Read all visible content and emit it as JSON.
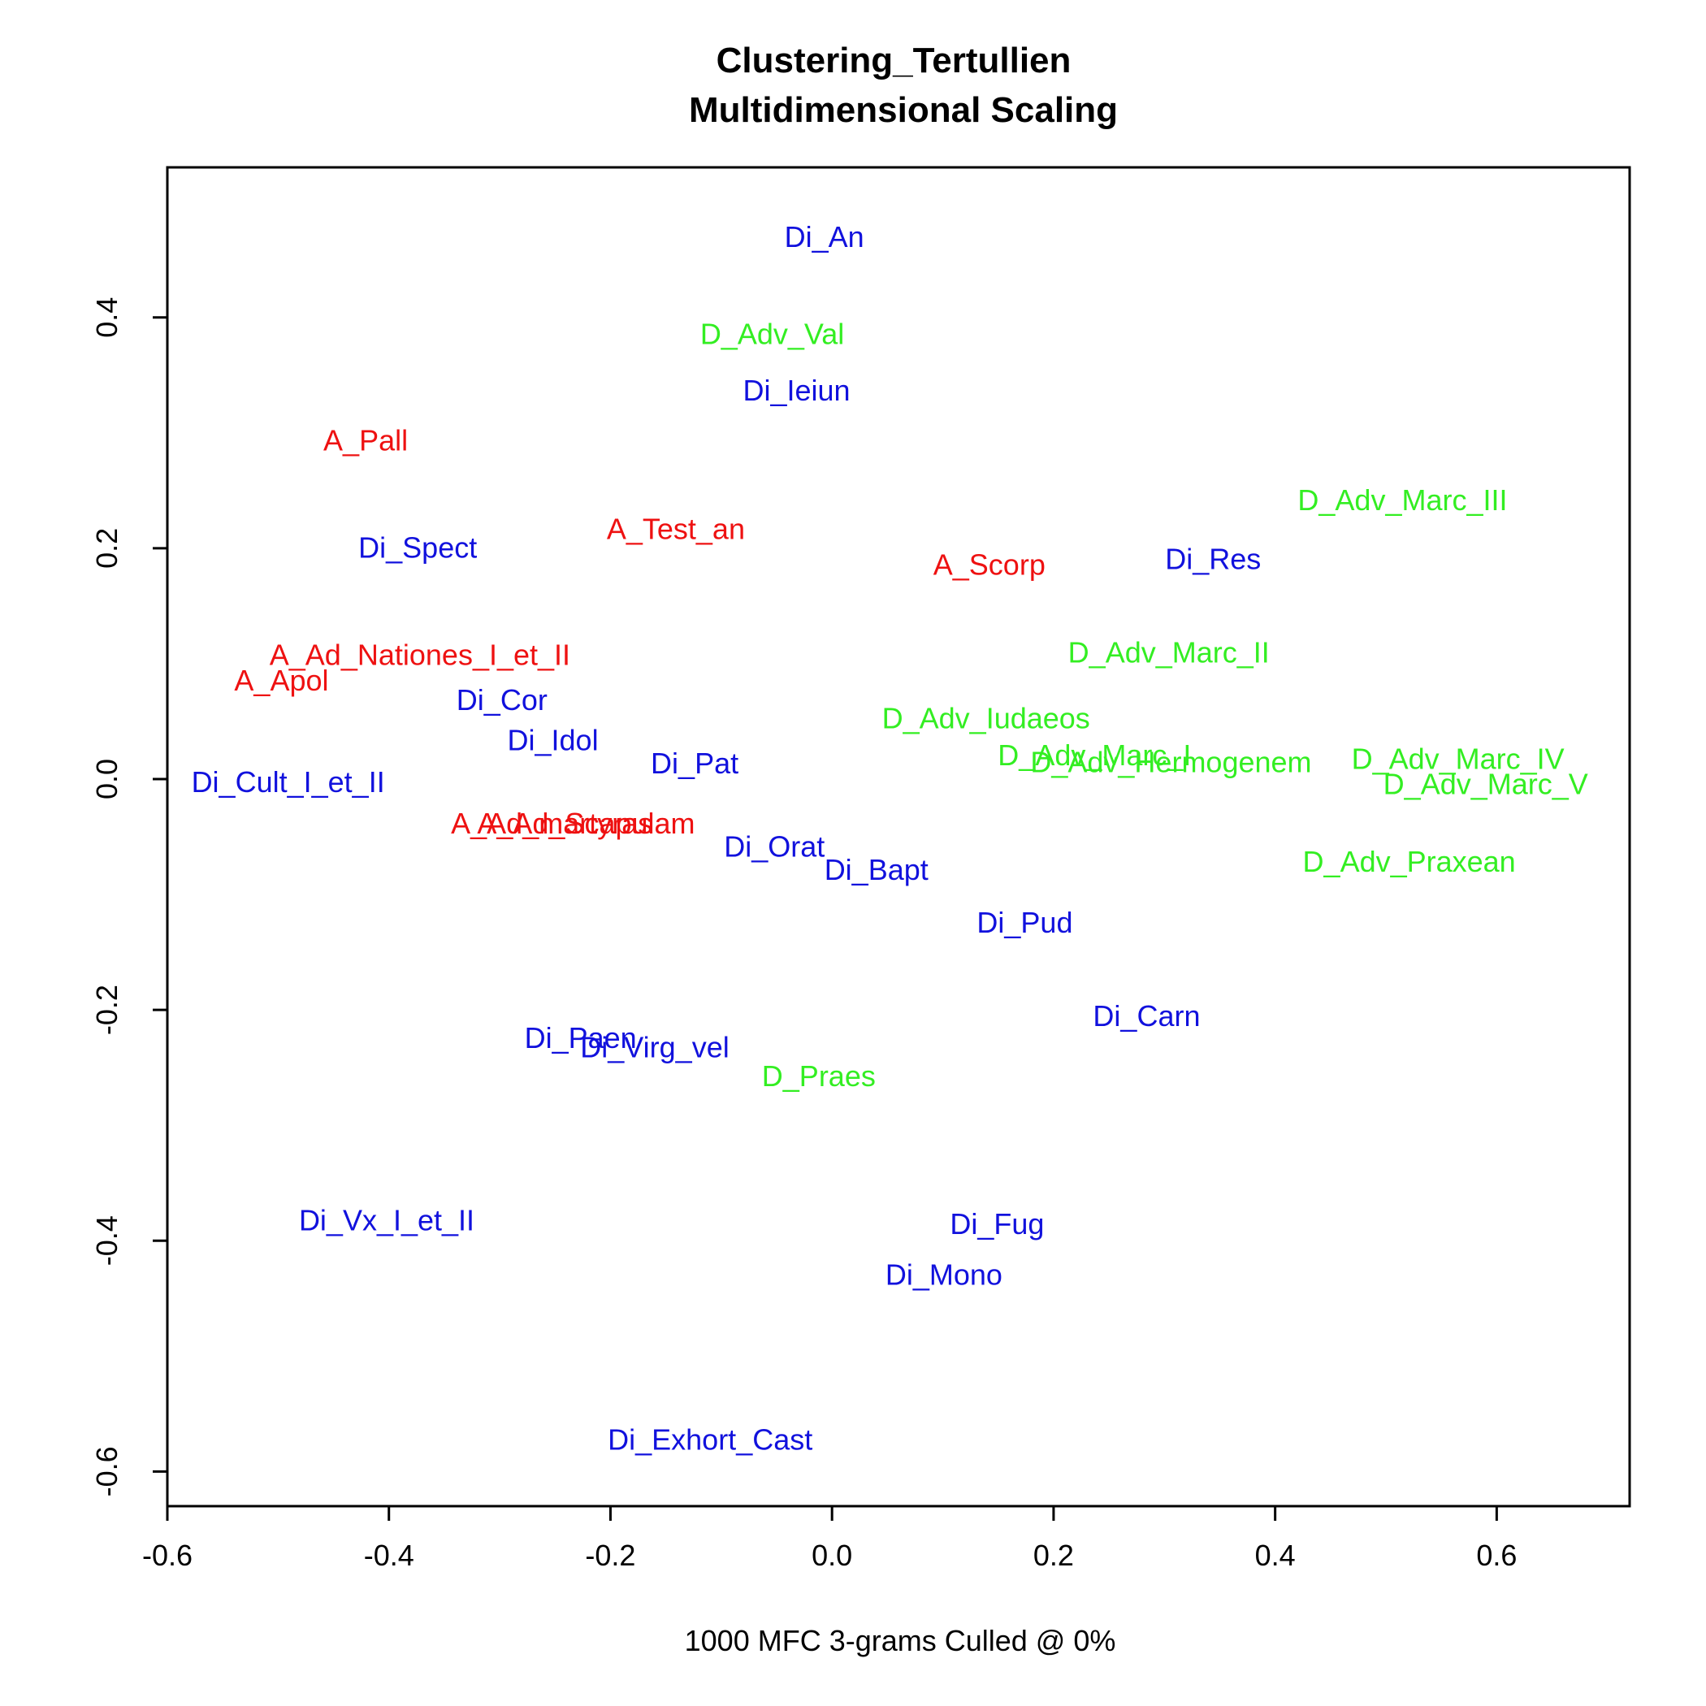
{
  "chart_data": {
    "type": "scatter",
    "title": "Clustering_Tertullien",
    "subtitle": "Multidimensional Scaling",
    "xlabel": "1000 MFC 3-grams Culled @ 0%",
    "ylabel": "",
    "xlim": [
      -0.6,
      0.72
    ],
    "ylim": [
      -0.63,
      0.53
    ],
    "x_ticks": [
      "-0.6",
      "-0.4",
      "-0.2",
      "0.0",
      "0.2",
      "0.4",
      "0.6"
    ],
    "y_ticks": [
      "-0.6",
      "-0.4",
      "-0.2",
      "0.0",
      "0.2",
      "0.4"
    ],
    "grid": false,
    "colors": {
      "A": "#ee1111",
      "Di": "#1111dd",
      "D": "#33ee22"
    },
    "points": [
      {
        "label": "Di_An",
        "group": "Di",
        "x": -0.007,
        "y": 0.47
      },
      {
        "label": "D_Adv_Val",
        "group": "D",
        "x": -0.054,
        "y": 0.386
      },
      {
        "label": "Di_Ieiun",
        "group": "Di",
        "x": -0.032,
        "y": 0.337
      },
      {
        "label": "A_Pall",
        "group": "A",
        "x": -0.421,
        "y": 0.294
      },
      {
        "label": "A_Test_an",
        "group": "A",
        "x": -0.141,
        "y": 0.217
      },
      {
        "label": "Di_Spect",
        "group": "Di",
        "x": -0.374,
        "y": 0.201
      },
      {
        "label": "A_Scorp",
        "group": "A",
        "x": 0.142,
        "y": 0.186
      },
      {
        "label": "Di_Res",
        "group": "Di",
        "x": 0.344,
        "y": 0.191
      },
      {
        "label": "D_Adv_Marc_III",
        "group": "D",
        "x": 0.515,
        "y": 0.242
      },
      {
        "label": "A_Ad_Nationes_I_et_II",
        "group": "A",
        "x": -0.372,
        "y": 0.108
      },
      {
        "label": "A_Apol",
        "group": "A",
        "x": -0.497,
        "y": 0.086
      },
      {
        "label": "D_Adv_Marc_II",
        "group": "D",
        "x": 0.304,
        "y": 0.11
      },
      {
        "label": "Di_Cor",
        "group": "Di",
        "x": -0.298,
        "y": 0.069
      },
      {
        "label": "D_Adv_Iudaeos",
        "group": "D",
        "x": 0.139,
        "y": 0.053
      },
      {
        "label": "Di_Idol",
        "group": "Di",
        "x": -0.252,
        "y": 0.034
      },
      {
        "label": "Di_Pat",
        "group": "Di",
        "x": -0.124,
        "y": 0.014
      },
      {
        "label": "D_Adv_Marc_I",
        "group": "D",
        "x": 0.237,
        "y": 0.021
      },
      {
        "label": "D_Adv_Hermogenem",
        "group": "D",
        "x": 0.306,
        "y": 0.015
      },
      {
        "label": "D_Adv_Marc_IV",
        "group": "D",
        "x": 0.565,
        "y": 0.018
      },
      {
        "label": "D_Adv_Marc_V",
        "group": "D",
        "x": 0.59,
        "y": -0.004
      },
      {
        "label": "Di_Cult_I_et_II",
        "group": "Di",
        "x": -0.491,
        "y": -0.002
      },
      {
        "label": "A_Ad_martyras",
        "group": "A",
        "x": -0.253,
        "y": -0.038
      },
      {
        "label": "A_Ad_Scapulam",
        "group": "A",
        "x": -0.222,
        "y": -0.038
      },
      {
        "label": "Di_Orat",
        "group": "Di",
        "x": -0.052,
        "y": -0.058
      },
      {
        "label": "Di_Bapt",
        "group": "Di",
        "x": 0.04,
        "y": -0.078
      },
      {
        "label": "D_Adv_Praxean",
        "group": "D",
        "x": 0.521,
        "y": -0.071
      },
      {
        "label": "Di_Pud",
        "group": "Di",
        "x": 0.174,
        "y": -0.124
      },
      {
        "label": "Di_Carn",
        "group": "Di",
        "x": 0.284,
        "y": -0.205
      },
      {
        "label": "Di_Paen",
        "group": "Di",
        "x": -0.227,
        "y": -0.224
      },
      {
        "label": "Di_Virg_vel",
        "group": "Di",
        "x": -0.16,
        "y": -0.232
      },
      {
        "label": "D_Praes",
        "group": "D",
        "x": -0.012,
        "y": -0.257
      },
      {
        "label": "Di_Vx_I_et_II",
        "group": "Di",
        "x": -0.402,
        "y": -0.382
      },
      {
        "label": "Di_Fug",
        "group": "Di",
        "x": 0.149,
        "y": -0.385
      },
      {
        "label": "Di_Mono",
        "group": "Di",
        "x": 0.101,
        "y": -0.429
      },
      {
        "label": "Di_Exhort_Cast",
        "group": "Di",
        "x": -0.11,
        "y": -0.572
      }
    ]
  }
}
